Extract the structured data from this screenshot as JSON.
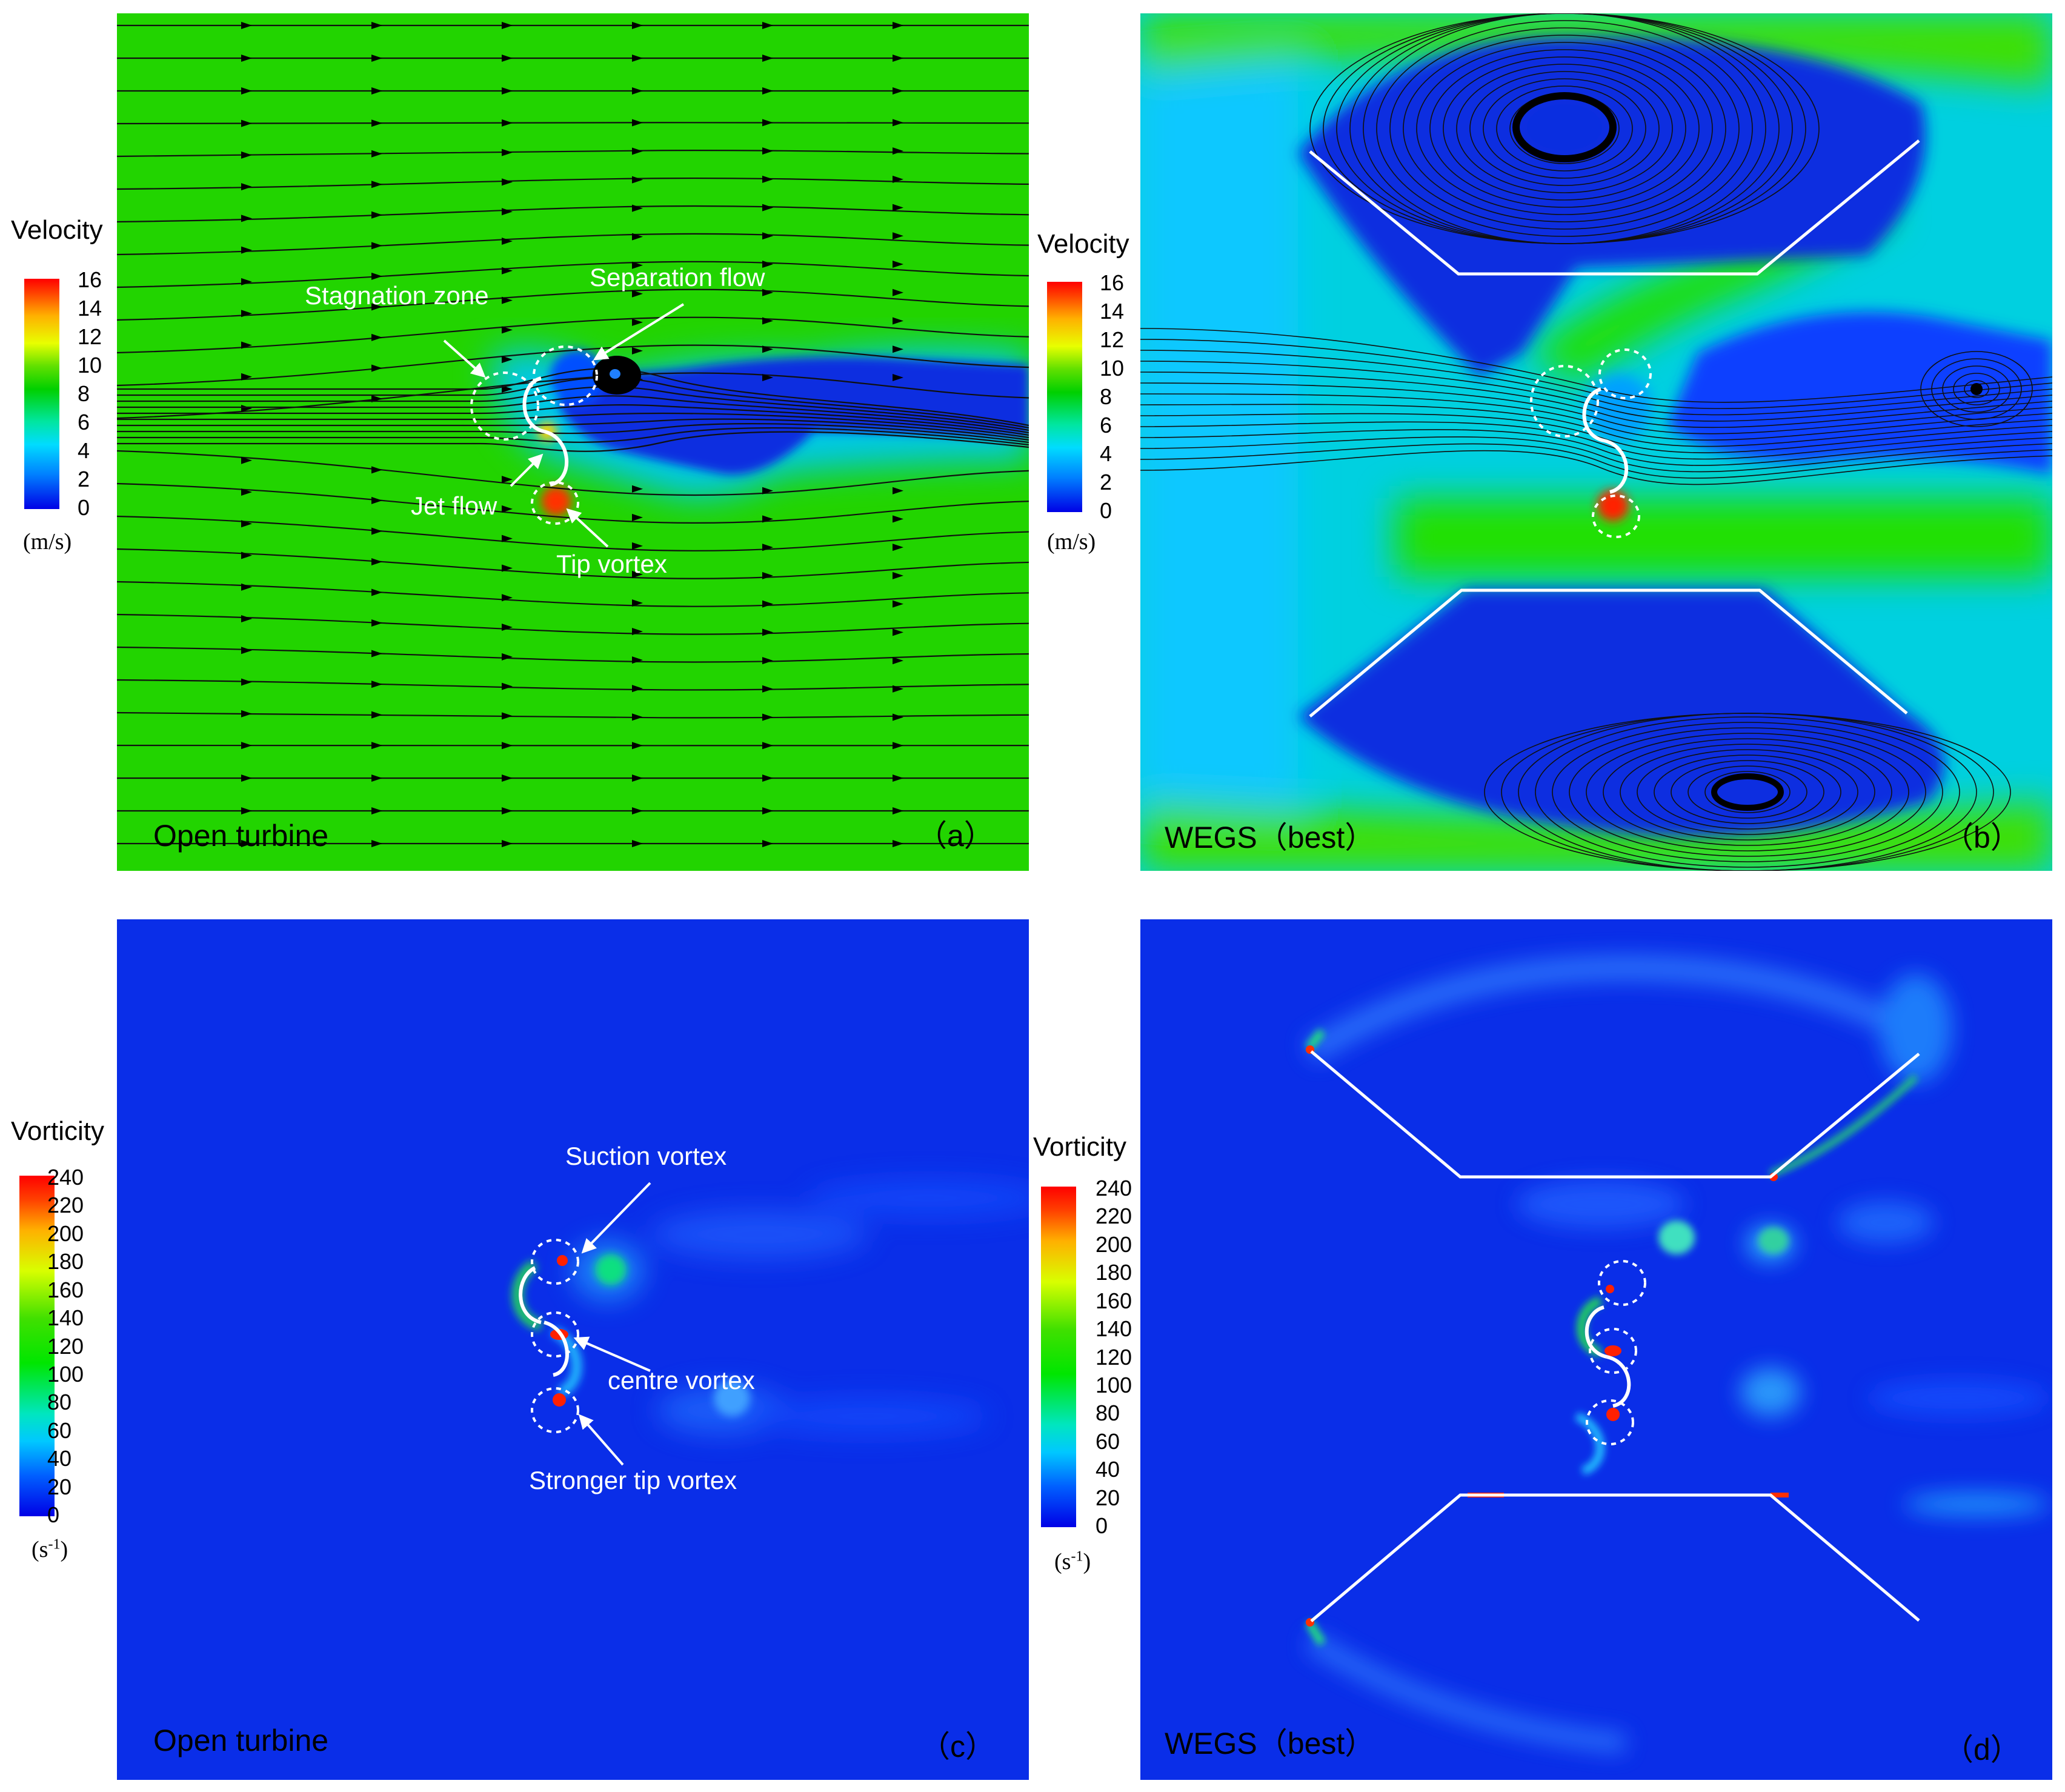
{
  "colors": {
    "velocity_green": "#22d400",
    "low_velocity_blue": "#0a2ee0",
    "vorticity_background": "#0a2ee8",
    "annotation_white": "#ffffff"
  },
  "legends": {
    "velocity": {
      "title": "Velocity",
      "ticks": [
        "16",
        "14",
        "12",
        "10",
        "8",
        "6",
        "4",
        "2",
        "0"
      ],
      "unit": "(m/s)"
    },
    "vorticity": {
      "title": "Vorticity",
      "ticks": [
        "240",
        "220",
        "200",
        "180",
        "160",
        "140",
        "120",
        "100",
        "80",
        "60",
        "40",
        "20",
        "0"
      ],
      "unit_main": "(s",
      "unit_sup": "-1",
      "unit_close": ")"
    }
  },
  "panels": {
    "a": {
      "label": "Open turbine",
      "letter": "（a）",
      "annotations": {
        "stagnation": "Stagnation  zone",
        "separation": "Separation flow",
        "jet": "Jet flow",
        "tip": "Tip vortex"
      }
    },
    "b": {
      "label": "WEGS（best）",
      "letter": "（b）"
    },
    "c": {
      "label": "Open turbine",
      "letter": "（c）",
      "annotations": {
        "suction": "Suction vortex",
        "centre": "centre vortex",
        "tip": "Stronger tip vortex"
      }
    },
    "d": {
      "label": "WEGS（best）",
      "letter": "（d）"
    }
  }
}
